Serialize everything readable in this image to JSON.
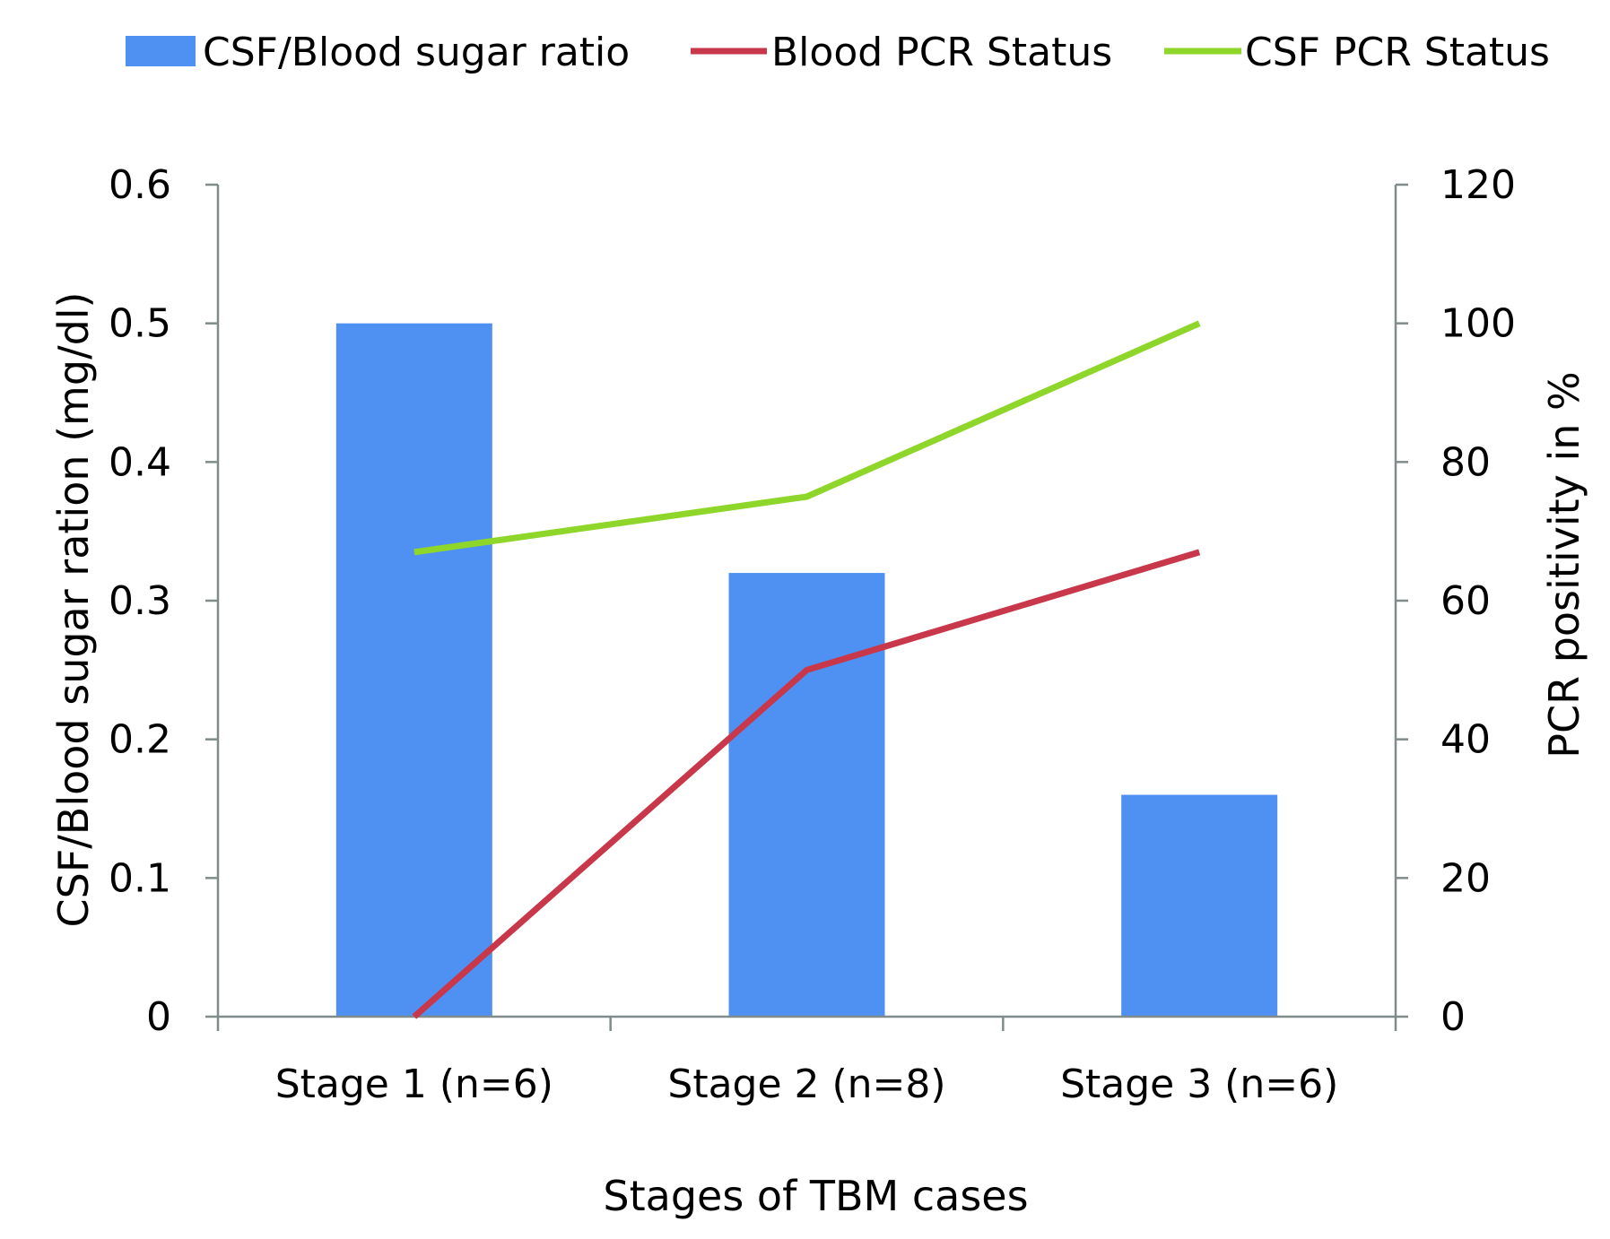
{
  "chart_data": {
    "type": "bar+line",
    "categories": [
      "Stage 1 (n=6)",
      "Stage 2 (n=8)",
      "Stage 3 (n=6)"
    ],
    "bar_series": {
      "name": "CSF/Blood sugar ratio",
      "axis": "left",
      "color": "#4f91f2",
      "values": [
        0.5,
        0.32,
        0.16
      ]
    },
    "line_series": [
      {
        "name": "Blood PCR Status",
        "axis": "right",
        "color": "#c8384a",
        "values": [
          0,
          50,
          67
        ]
      },
      {
        "name": "CSF PCR Status",
        "axis": "right",
        "color": "#8ed62a",
        "values": [
          67,
          75,
          100
        ]
      }
    ],
    "xlabel": "Stages of TBM cases",
    "ylabel_left": "CSF/Blood sugar ration (mg/dl)",
    "ylabel_right": "PCR positivity in %",
    "ylim_left": [
      0,
      0.6
    ],
    "yticks_left": [
      "0",
      "0.1",
      "0.2",
      "0.3",
      "0.4",
      "0.5",
      "0.6"
    ],
    "ylim_right": [
      0,
      120
    ],
    "yticks_right": [
      "0",
      "20",
      "40",
      "60",
      "80",
      "100",
      "120"
    ],
    "legend_position": "top",
    "grid": false,
    "axis_color": "#7f8c8a"
  }
}
